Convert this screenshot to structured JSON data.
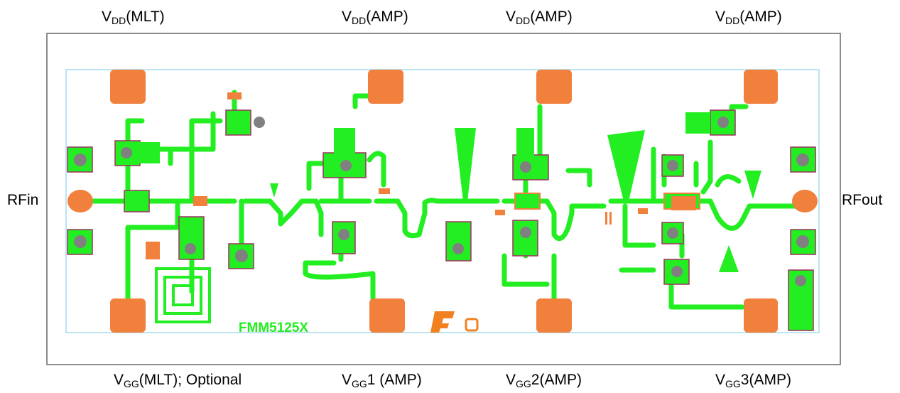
{
  "labels": {
    "top": [
      {
        "v": "V",
        "sub": "DD",
        "rest": "(MLT)"
      },
      {
        "v": "V",
        "sub": "DD",
        "rest": "(AMP)"
      },
      {
        "v": "V",
        "sub": "DD",
        "rest": "(AMP)"
      },
      {
        "v": "V",
        "sub": "DD",
        "rest": "(AMP)"
      }
    ],
    "bottom": [
      {
        "v": "V",
        "sub": "GG",
        "rest": "(MLT); Optional"
      },
      {
        "v": "V",
        "sub": "GG",
        "rest": "1 (AMP)"
      },
      {
        "v": "V",
        "sub": "GG",
        "rest": "2(AMP)"
      },
      {
        "v": "V",
        "sub": "GG",
        "rest": "3(AMP)"
      }
    ]
  },
  "ports": {
    "input": "RFin",
    "output": "RFout"
  },
  "chip_marking": "FMM5125X"
}
